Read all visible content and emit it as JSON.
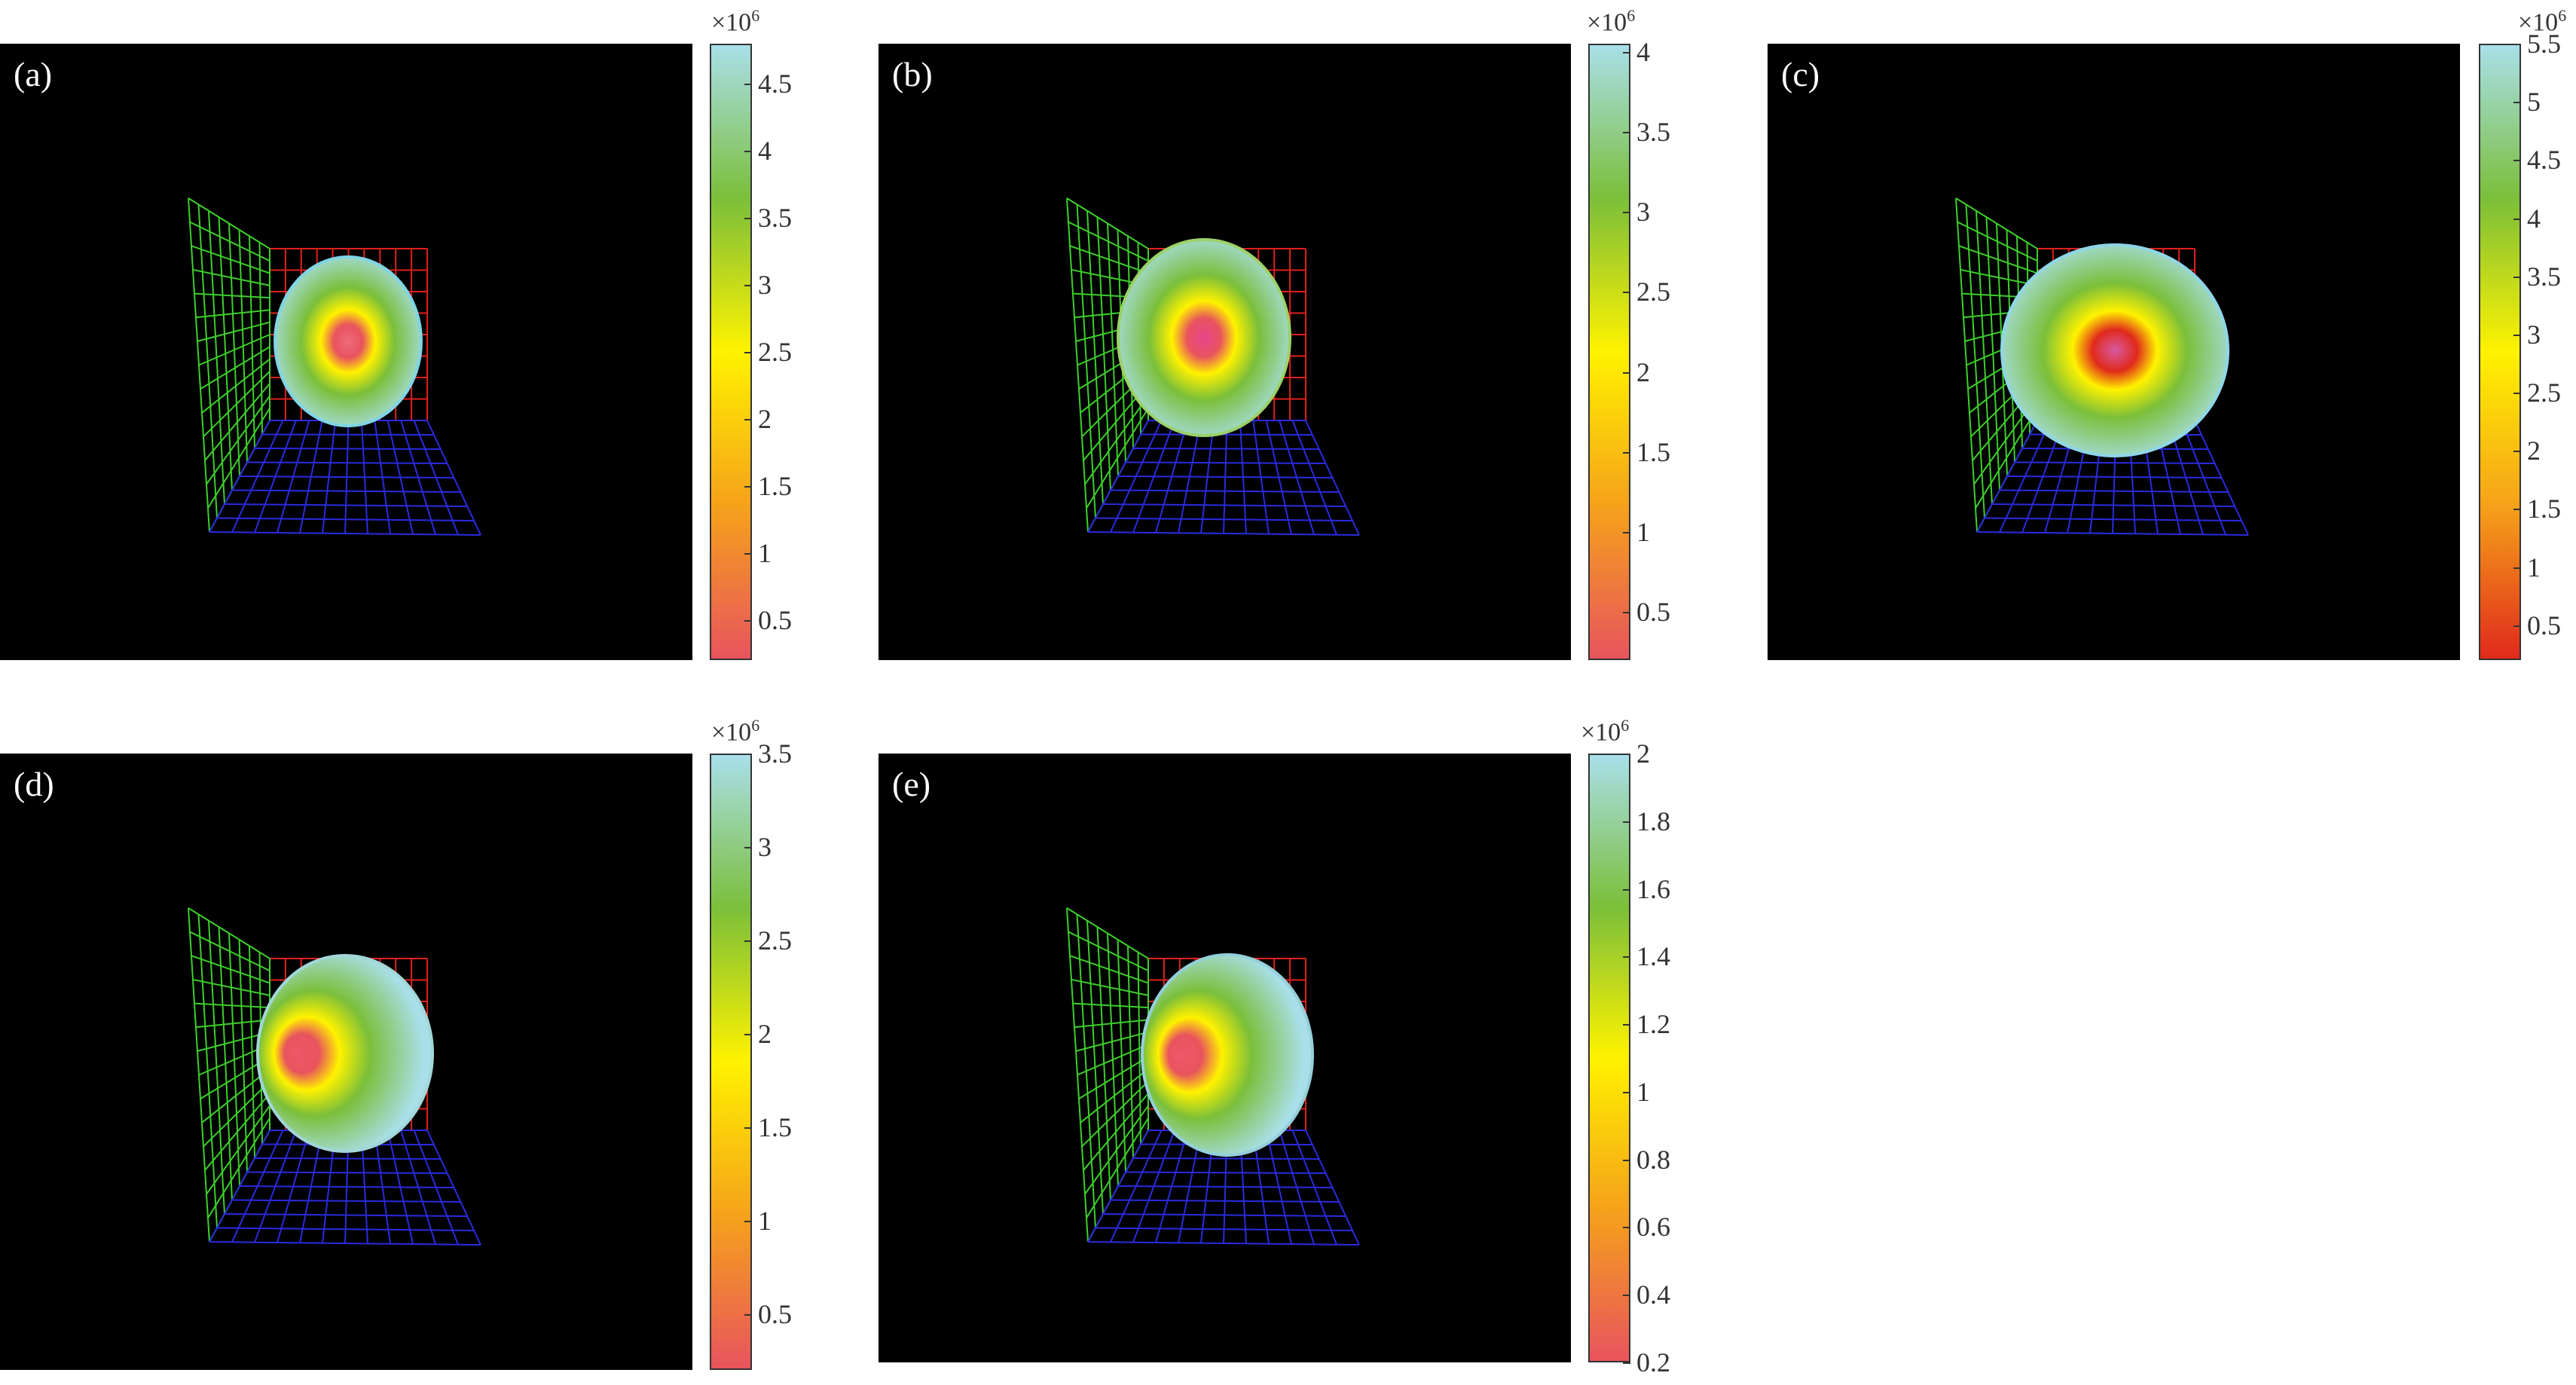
{
  "chart_data": [
    {
      "type": "heatmap",
      "panel_label": "(a)",
      "colorbar_multiplier": "×10",
      "colorbar_exponent": "6",
      "colorbar_range": [
        0.2,
        4.8
      ],
      "colorbar_ticks": [
        0.5,
        1,
        1.5,
        2,
        2.5,
        3,
        3.5,
        4,
        4.5
      ],
      "colormap": [
        "#e8545e",
        "#f5a21a",
        "#fff200",
        "#7bbf3a",
        "#a9dfe9"
      ],
      "spot": {
        "max_color": "#ee6a7a",
        "edge_color": "#7fd5e4"
      }
    },
    {
      "type": "heatmap",
      "panel_label": "(b)",
      "colorbar_multiplier": "×10",
      "colorbar_exponent": "6",
      "colorbar_range": [
        0.2,
        4.05
      ],
      "colorbar_ticks": [
        0.5,
        1,
        1.5,
        2,
        2.5,
        3,
        3.5,
        4
      ],
      "colormap": [
        "#e8545e",
        "#f5a21a",
        "#fff200",
        "#7bbf3a",
        "#a9dfe9"
      ],
      "spot": {
        "max_color": "#e9458c",
        "edge_color": "#9bd26a"
      }
    },
    {
      "type": "heatmap",
      "panel_label": "(c)",
      "colorbar_multiplier": "×10",
      "colorbar_exponent": "6",
      "colorbar_range": [
        0.2,
        5.5
      ],
      "colorbar_ticks": [
        0.5,
        1,
        1.5,
        2,
        2.5,
        3,
        3.5,
        4,
        4.5,
        5,
        5.5
      ],
      "colormap": [
        "#e02a1c",
        "#f5a21a",
        "#fff200",
        "#7bbf3a",
        "#a9dfe9"
      ],
      "spot": {
        "max_color": "#d85aa0",
        "edge_color": "#8fd6e6"
      }
    },
    {
      "type": "heatmap",
      "panel_label": "(d)",
      "colorbar_multiplier": "×10",
      "colorbar_exponent": "6",
      "colorbar_range": [
        0.2,
        3.5
      ],
      "colorbar_ticks": [
        0.5,
        1,
        1.5,
        2,
        2.5,
        3,
        3.5
      ],
      "colormap": [
        "#e8545e",
        "#f5a21a",
        "#fff200",
        "#7bbf3a",
        "#a9dfe9"
      ],
      "spot": {
        "max_color": "#ee5868",
        "edge_color": "#a2d6d8"
      }
    },
    {
      "type": "heatmap",
      "panel_label": "(e)",
      "colorbar_multiplier": "×10",
      "colorbar_exponent": "6",
      "colorbar_range": [
        0.2,
        2.0
      ],
      "colorbar_ticks": [
        0.2,
        0.4,
        0.6,
        0.8,
        1,
        1.2,
        1.4,
        1.6,
        1.8,
        2
      ],
      "colormap": [
        "#e8545e",
        "#f5a21a",
        "#fff200",
        "#7bbf3a",
        "#a9dfe9"
      ],
      "spot": {
        "max_color": "#ee5868",
        "edge_color": "#94d0da"
      }
    }
  ]
}
